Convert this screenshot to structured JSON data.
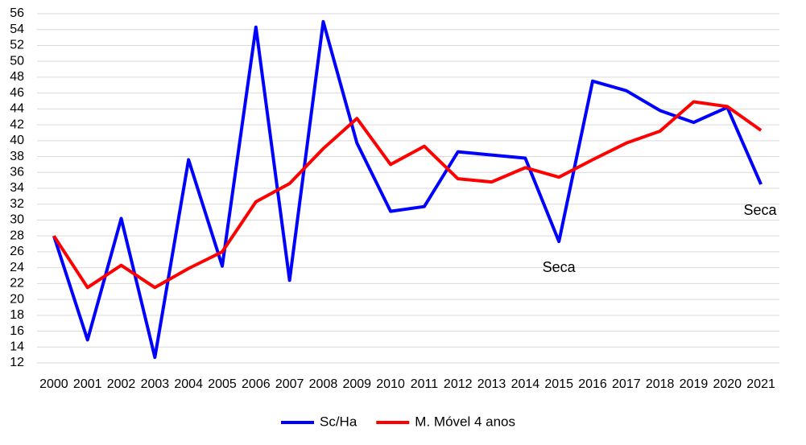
{
  "chart_data": {
    "type": "line",
    "categories": [
      "2000",
      "2001",
      "2002",
      "2003",
      "2004",
      "2005",
      "2006",
      "2007",
      "2008",
      "2009",
      "2010",
      "2011",
      "2012",
      "2013",
      "2014",
      "2015",
      "2016",
      "2017",
      "2018",
      "2019",
      "2020",
      "2021"
    ],
    "series": [
      {
        "name": "Sc/Ha",
        "color": "#0000ff",
        "values": [
          28,
          14.9,
          30.2,
          12.7,
          37.6,
          24.2,
          54.3,
          22.4,
          55.0,
          39.7,
          31.1,
          31.7,
          38.6,
          38.2,
          37.8,
          27.3,
          47.5,
          46.3,
          43.8,
          42.3,
          44.2,
          34.5
        ]
      },
      {
        "name": "M. Móvel 4 anos",
        "color": "#ff0000",
        "values": [
          28,
          21.5,
          24.3,
          21.5,
          23.9,
          26.0,
          32.3,
          34.6,
          39.0,
          42.8,
          37.0,
          39.3,
          35.2,
          34.8,
          36.6,
          35.4,
          37.6,
          39.7,
          41.2,
          44.9,
          44.3,
          41.3
        ]
      }
    ],
    "ylim": [
      12,
      56
    ],
    "yticks": [
      12,
      14,
      16,
      18,
      20,
      22,
      24,
      26,
      28,
      30,
      32,
      34,
      36,
      38,
      40,
      42,
      44,
      46,
      48,
      50,
      52,
      54,
      56
    ],
    "grid": true,
    "legend": "bottom",
    "annotations": [
      {
        "text": "Seca",
        "x": "2015"
      },
      {
        "text": "Seca",
        "x": "2021"
      }
    ]
  }
}
